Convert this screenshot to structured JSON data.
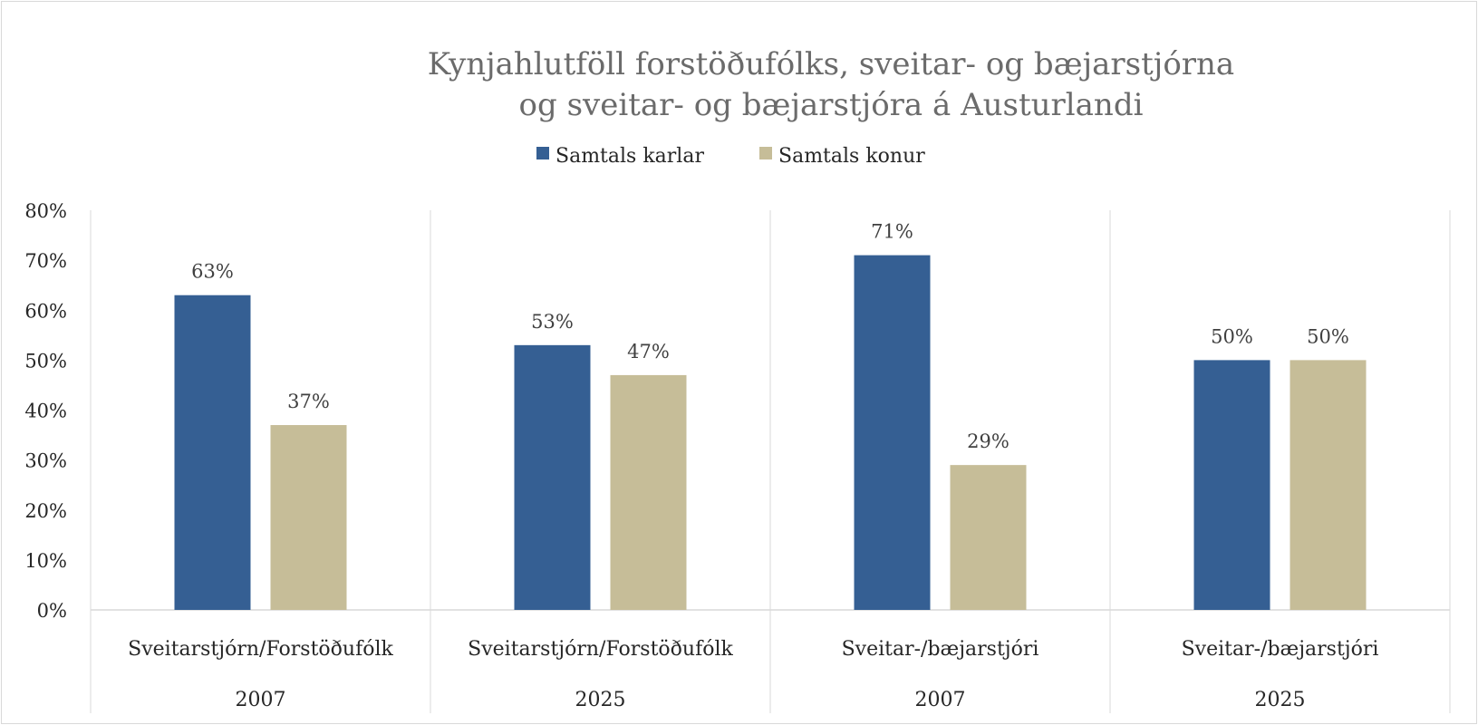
{
  "chart_data": {
    "type": "bar",
    "title_lines": [
      "Kynjahlutföll forstöðufólks, sveitar- og bæjarstjórna",
      "og sveitar- og bæjarstjóra á Austurlandi"
    ],
    "categories": [
      "Sveitarstjórn/Forstöðufólk",
      "Sveitarstjórn/Forstöðufólk",
      "Sveitar-/bæjarstjóri",
      "Sveitar-/bæjarstjóri"
    ],
    "years": [
      "2007",
      "2025",
      "2007",
      "2025"
    ],
    "series": [
      {
        "name": "Samtals karlar",
        "color": "#355f93",
        "values": [
          0.63,
          0.53,
          0.71,
          0.5
        ],
        "labels": [
          "63%",
          "53%",
          "71%",
          "50%"
        ]
      },
      {
        "name": "Samtals konur",
        "color": "#c6bd98",
        "values": [
          0.37,
          0.47,
          0.29,
          0.5
        ],
        "labels": [
          "37%",
          "47%",
          "29%",
          "50%"
        ]
      }
    ],
    "ylim": [
      0,
      0.8
    ],
    "yticks": [
      "0%",
      "10%",
      "20%",
      "30%",
      "40%",
      "50%",
      "60%",
      "70%",
      "80%"
    ],
    "legend_position": "top",
    "grid": "vertical category separators"
  }
}
